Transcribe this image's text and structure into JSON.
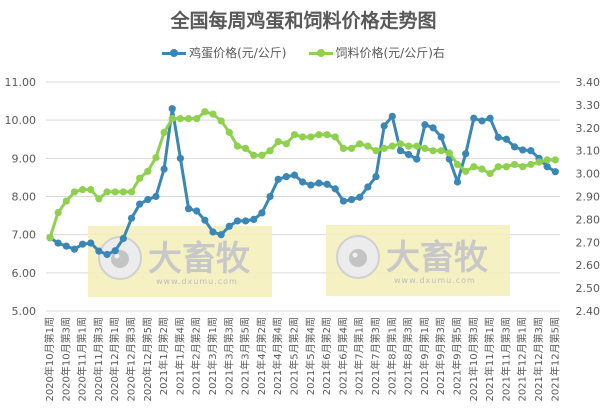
{
  "chart_data": {
    "type": "line",
    "title": "全国每周鸡蛋和饲料价格走势图",
    "xlabel": "",
    "ylabel": "",
    "y_left": {
      "min": 5.0,
      "max": 11.0,
      "ticks": [
        "11.00",
        "10.00",
        "9.00",
        "8.00",
        "7.00",
        "6.00",
        "5.00"
      ]
    },
    "y_right": {
      "min": 2.4,
      "max": 3.4,
      "ticks": [
        "3.40",
        "3.30",
        "3.20",
        "3.10",
        "3.00",
        "2.90",
        "2.80",
        "2.70",
        "2.60",
        "2.50",
        "2.40"
      ]
    },
    "grid": true,
    "legend_position": "top",
    "x_tick_labels": [
      "2020年10月第1周",
      "2020年10月第3周",
      "2020年11月第1周",
      "2020年11月第3周",
      "2020年12月第1周",
      "2020年12月第3周",
      "2020年12月第5周",
      "2021年1月第2周",
      "2021年1月第4周",
      "2021年2月第2周",
      "2021年3月第1周",
      "2021年3月第3周",
      "2021年3月第5周",
      "2021年4月第2周",
      "2021年4月第4周",
      "2021年5月第2周",
      "2021年5月第4周",
      "2021年6月第2周",
      "2021年6月第4周",
      "2021年7月第1周",
      "2021年7月第3周",
      "2021年8月第1周",
      "2021年8月第3周",
      "2021年9月第1周",
      "2021年9月第3周",
      "2021年9月第5周",
      "2021年10月第3周",
      "2021年11月第1周",
      "2021年11月第3周",
      "2021年12月第1周",
      "2021年12月第3周",
      "2021年12月第5周"
    ],
    "series": [
      {
        "name": "鸡蛋价格(元/公斤)",
        "axis": "left",
        "color": "#3a87b5",
        "values": [
          6.92,
          6.78,
          6.7,
          6.62,
          6.75,
          6.78,
          6.57,
          6.48,
          6.58,
          6.9,
          7.43,
          7.8,
          7.92,
          8.0,
          8.72,
          10.3,
          9.0,
          7.68,
          7.62,
          7.38,
          7.07,
          7.0,
          7.22,
          7.36,
          7.36,
          7.4,
          7.57,
          8.0,
          8.45,
          8.52,
          8.56,
          8.38,
          8.3,
          8.35,
          8.32,
          8.2,
          7.88,
          7.92,
          7.98,
          8.25,
          8.52,
          9.85,
          10.1,
          9.2,
          9.1,
          8.98,
          9.88,
          9.8,
          9.56,
          8.98,
          8.38,
          9.12,
          10.05,
          9.98,
          10.05,
          9.55,
          9.5,
          9.3,
          9.22,
          9.2,
          9.0,
          8.78,
          8.65
        ]
      },
      {
        "name": "饲料价格(元/公斤)右",
        "axis": "right",
        "color": "#8fd14f",
        "values": [
          2.72,
          2.83,
          2.88,
          2.92,
          2.93,
          2.93,
          2.89,
          2.92,
          2.92,
          2.92,
          2.92,
          2.98,
          3.01,
          3.07,
          3.18,
          3.24,
          3.24,
          3.24,
          3.24,
          3.27,
          3.26,
          3.23,
          3.18,
          3.12,
          3.11,
          3.08,
          3.08,
          3.1,
          3.14,
          3.13,
          3.17,
          3.16,
          3.16,
          3.17,
          3.17,
          3.16,
          3.11,
          3.11,
          3.13,
          3.12,
          3.1,
          3.11,
          3.12,
          3.13,
          3.12,
          3.12,
          3.11,
          3.1,
          3.1,
          3.09,
          3.04,
          3.01,
          3.03,
          3.02,
          3.0,
          3.03,
          3.03,
          3.04,
          3.03,
          3.04,
          3.05,
          3.06,
          3.06
        ]
      }
    ]
  },
  "watermark": {
    "brand": "大畜牧",
    "url": "www.dxumu.com"
  },
  "colors": {
    "egg": "#3a87b5",
    "feed": "#8fd14f",
    "grid": "#d9d9d9",
    "text": "#595959",
    "watermark_bg": "#f5efb8"
  }
}
